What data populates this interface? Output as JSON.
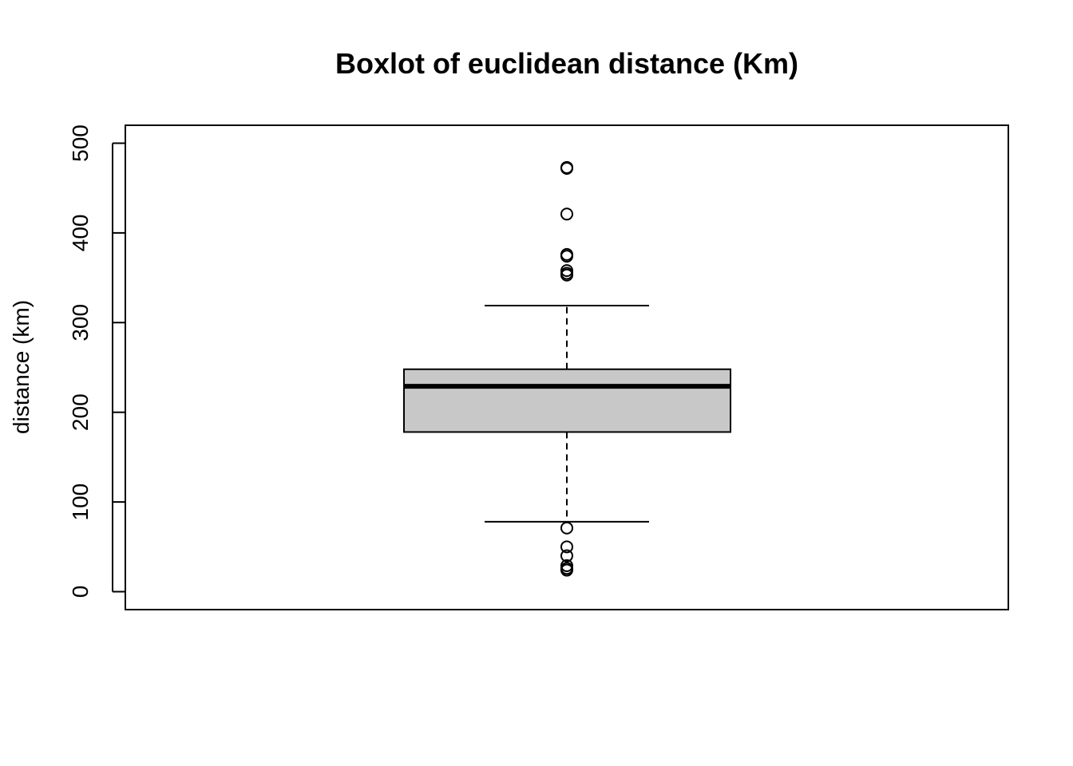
{
  "chart_data": {
    "type": "boxplot",
    "title": "Boxlot of euclidean distance (Km)",
    "xlabel": "",
    "ylabel": "distance (km)",
    "ylim": [
      -20,
      520
    ],
    "y_ticks": [
      0,
      100,
      200,
      300,
      400,
      500
    ],
    "y_tick_labels": [
      "0",
      "100",
      "200",
      "300",
      "400",
      "500"
    ],
    "grid": false,
    "box": {
      "whisker_low": 78,
      "q1": 178,
      "median": 229,
      "q3": 248,
      "whisker_high": 319,
      "fill": "#c8c8c8"
    },
    "outliers": [
      473,
      472,
      421,
      376,
      374,
      358,
      355,
      353,
      71,
      50,
      40,
      29,
      26,
      24
    ]
  }
}
